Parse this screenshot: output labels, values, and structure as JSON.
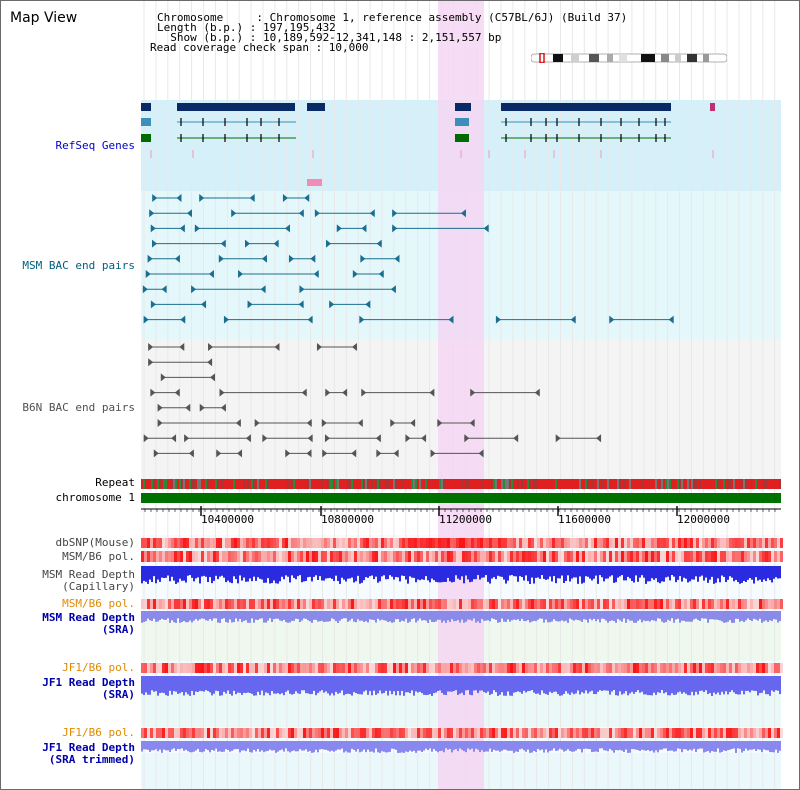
{
  "header": {
    "title": "Map View",
    "info_lines": [
      "Chromosome     : Chromosome 1, reference assembly (C57BL/6J) (Build 37)",
      "Length (b.p.) : 197,195,432",
      "  Show (b.p.) : 10,189,592-12,341,148 : 2,151,557 bp",
      "Read coverage check span : 10,000"
    ]
  },
  "tracks": {
    "refseq_label": "RefSeq Genes",
    "msm_bac_label": "MSM BAC end pairs",
    "b6n_bac_label": "B6N BAC end pairs",
    "repeat_label": "Repeat",
    "chromosome_label": "chromosome 1",
    "dbsnp_label": "dbSNP(Mouse)",
    "msm_b6_pol_label": "MSM/B6 pol.",
    "msm_depth_cap_label_1": "MSM Read Depth",
    "msm_depth_cap_label_2": "(Capillary)",
    "msm_b6_pol2_label": "MSM/B6 pol.",
    "msm_depth_sra_label_1": "MSM Read Depth",
    "msm_depth_sra_label_2": "(SRA)",
    "jf1_b6_pol_label": "JF1/B6 pol.",
    "jf1_depth_sra_label_1": "JF1 Read Depth",
    "jf1_depth_sra_label_2": "(SRA)",
    "jf1_b6_pol2_label": "JF1/B6 pol.",
    "jf1_depth_trim_label_1": "JF1 Read Depth",
    "jf1_depth_trim_label_2": "(SRA trimmed)"
  },
  "axis": {
    "ticks": [
      "10400000",
      "10800000",
      "11200000",
      "11600000",
      "12000000"
    ]
  },
  "colors": {
    "refseq_bg": "#d6f0fa",
    "msm_bg": "#e4f8fb",
    "b6n_bg": "#f4f4f4",
    "highlight": "#f5d6f2",
    "refseq_label": "#0000cc",
    "msm_label": "#006080",
    "b6n_label": "#505050",
    "orange_label": "#e08a00",
    "blue_label": "#0000aa",
    "gray_label": "#444444",
    "chrom_green": "#007000"
  }
}
